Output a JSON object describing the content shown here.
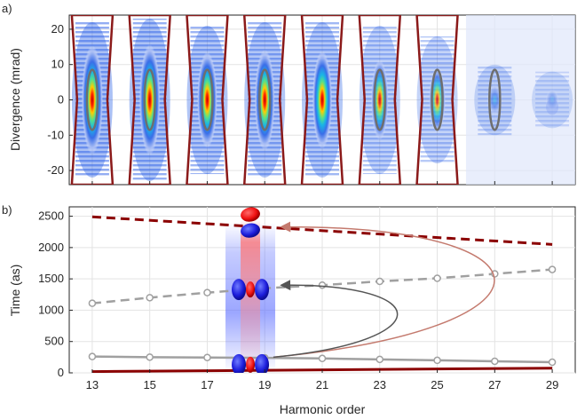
{
  "chart_data": [
    {
      "panel_label": "a)",
      "type": "heatmap",
      "title": "",
      "xlabel": "",
      "ylabel": "Divergence (mrad)",
      "ylim": [
        -24,
        24
      ],
      "y_ticks": [
        -20,
        -10,
        0,
        10,
        20
      ],
      "x_ticks": [
        13,
        15,
        17,
        19,
        21,
        23,
        25,
        27,
        29
      ],
      "xlim": [
        12.2,
        29.8
      ],
      "grid": true,
      "harmonics": [
        {
          "order": 13,
          "peak_intensity": 1.0,
          "spread_mrad": 22,
          "ellipse": true,
          "trapezoid": true
        },
        {
          "order": 15,
          "peak_intensity": 0.95,
          "spread_mrad": 23,
          "ellipse": true,
          "trapezoid": true
        },
        {
          "order": 17,
          "peak_intensity": 0.85,
          "spread_mrad": 21,
          "ellipse": true,
          "trapezoid": true
        },
        {
          "order": 19,
          "peak_intensity": 0.85,
          "spread_mrad": 22,
          "ellipse": true,
          "trapezoid": true
        },
        {
          "order": 21,
          "peak_intensity": 0.8,
          "spread_mrad": 22,
          "ellipse": false,
          "trapezoid": true
        },
        {
          "order": 23,
          "peak_intensity": 0.55,
          "spread_mrad": 21,
          "ellipse": true,
          "trapezoid": true
        },
        {
          "order": 25,
          "peak_intensity": 0.45,
          "spread_mrad": 18,
          "ellipse": true,
          "trapezoid": true
        },
        {
          "order": 27,
          "peak_intensity": 0.25,
          "spread_mrad": 10,
          "ellipse": true,
          "trapezoid": false
        },
        {
          "order": 29,
          "peak_intensity": 0.06,
          "spread_mrad": 8,
          "ellipse": false,
          "trapezoid": false
        }
      ],
      "colors": {
        "trapezoid": "#8b1a1a",
        "ellipse": "#6e6e6e"
      }
    },
    {
      "panel_label": "b)",
      "type": "line",
      "title": "",
      "xlabel": "Harmonic order",
      "ylabel": "Time (as)",
      "ylim": [
        0,
        2650
      ],
      "xlim": [
        12.2,
        29.8
      ],
      "x_ticks": [
        13,
        15,
        17,
        19,
        21,
        23,
        25,
        27,
        29
      ],
      "y_ticks": [
        0,
        500,
        1000,
        1500,
        2000,
        2500
      ],
      "grid": true,
      "x": [
        13,
        15,
        17,
        19,
        21,
        23,
        25,
        27,
        29
      ],
      "series": [
        {
          "color": "#8b0000",
          "style": "dashed",
          "x": [
            13,
            29
          ],
          "values": [
            2490,
            2050
          ]
        },
        {
          "color": "#8b0000",
          "style": "solid",
          "x": [
            13,
            29
          ],
          "values": [
            20,
            75
          ]
        },
        {
          "color": "#a0a0a0",
          "style": "dashed",
          "markers": true,
          "values": [
            1110,
            1200,
            1280,
            1350,
            1400,
            1460,
            1510,
            1580,
            1650
          ]
        },
        {
          "color": "#a0a0a0",
          "style": "solid",
          "markers": true,
          "values": [
            260,
            250,
            245,
            240,
            230,
            215,
            200,
            185,
            170
          ]
        }
      ],
      "colors": {
        "glow_red": "#ff6060",
        "glow_blue": "#4a5cff",
        "lobe_red": "#ee1111",
        "lobe_blue": "#2222dd",
        "arrow_red": "#c47a6e",
        "arrow_gray": "#555555"
      }
    }
  ]
}
